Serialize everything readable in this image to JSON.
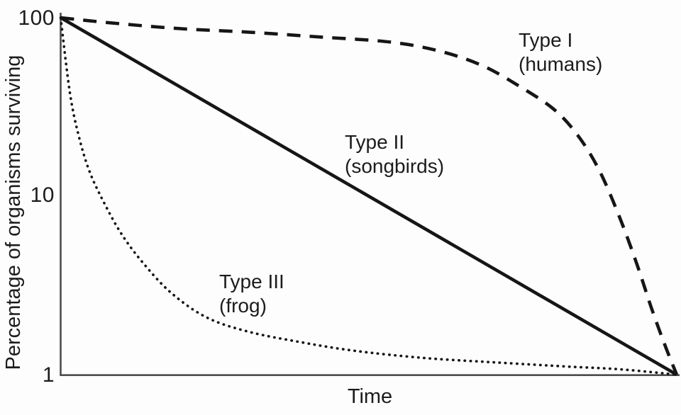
{
  "chart_data": {
    "type": "line",
    "title": "",
    "xlabel": "Time",
    "ylabel": "Percentage of organisms surviving",
    "y_scale": "log",
    "ylim": [
      1,
      100
    ],
    "x_range": [
      0,
      1
    ],
    "grid": false,
    "legend_position": "inline-annotations",
    "y_ticks": [
      100,
      10,
      1
    ],
    "y_tick_labels": [
      "100",
      "10",
      "1"
    ],
    "x_tick_labels": [],
    "series": [
      {
        "name": "Type I",
        "annotation": "(humans)",
        "style": "dashed",
        "x": [
          0,
          0.075,
          0.19,
          0.305,
          0.42,
          0.535,
          0.615,
          0.684,
          0.741,
          0.799,
          0.839,
          0.874,
          0.908,
          0.937,
          0.96,
          0.983,
          1
        ],
        "values": [
          100,
          94,
          87,
          83,
          78,
          73,
          65,
          54,
          42,
          31,
          22,
          14,
          7.5,
          4,
          2.3,
          1.4,
          1
        ]
      },
      {
        "name": "Type II",
        "annotation": "(songbirds)",
        "style": "solid",
        "x": [
          0,
          1
        ],
        "values": [
          100,
          1
        ]
      },
      {
        "name": "Type III",
        "annotation": "(frog)",
        "style": "dotted",
        "x": [
          0,
          0.015,
          0.029,
          0.046,
          0.069,
          0.098,
          0.132,
          0.178,
          0.236,
          0.305,
          0.39,
          0.477,
          0.59,
          0.707,
          0.822,
          0.91,
          1
        ],
        "values": [
          100,
          38,
          22,
          14,
          9.4,
          6.2,
          4.3,
          2.9,
          2.1,
          1.74,
          1.52,
          1.36,
          1.24,
          1.17,
          1.11,
          1.07,
          1
        ]
      }
    ]
  },
  "colors": {
    "curve": "#161616",
    "axis": "#4d4d4d",
    "text": "#1c1c1c",
    "background": "#fdfdfd"
  }
}
